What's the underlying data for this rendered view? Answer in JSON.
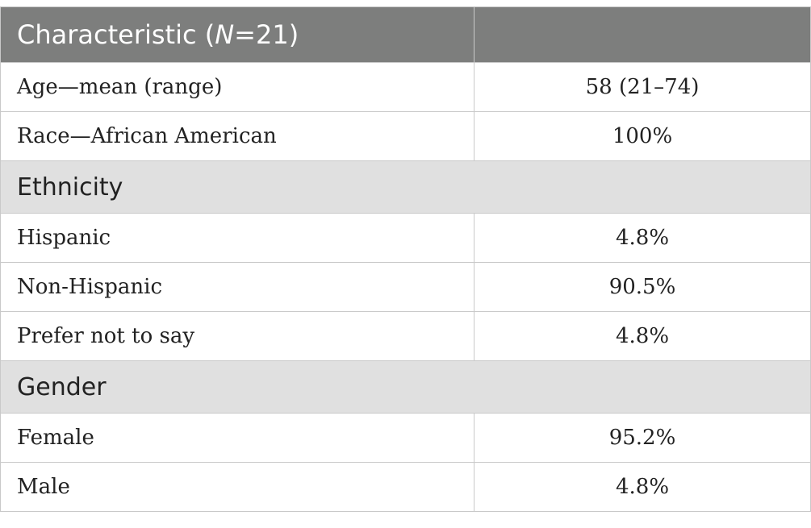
{
  "table": {
    "header": {
      "label_prefix": "Characteristic (",
      "label_n": "N",
      "label_suffix": "=21)",
      "value_header": ""
    },
    "rows_top": [
      {
        "label": "Age—mean (range)",
        "value": "58 (21–74)"
      },
      {
        "label": "Race—African American",
        "value": "100%"
      }
    ],
    "ethnicity": {
      "section_label": "Ethnicity",
      "rows": [
        {
          "label": "Hispanic",
          "value": "4.8%"
        },
        {
          "label": "Non-Hispanic",
          "value": "90.5%"
        },
        {
          "label": "Prefer not to say",
          "value": "4.8%"
        }
      ]
    },
    "gender": {
      "section_label": "Gender",
      "rows": [
        {
          "label": "Female",
          "value": "95.2%"
        },
        {
          "label": "Male",
          "value": "4.8%"
        }
      ]
    }
  },
  "colors": {
    "header_bg": "#7d7e7d",
    "section_bg": "#e0e0e0",
    "border": "#c9c9c9"
  }
}
